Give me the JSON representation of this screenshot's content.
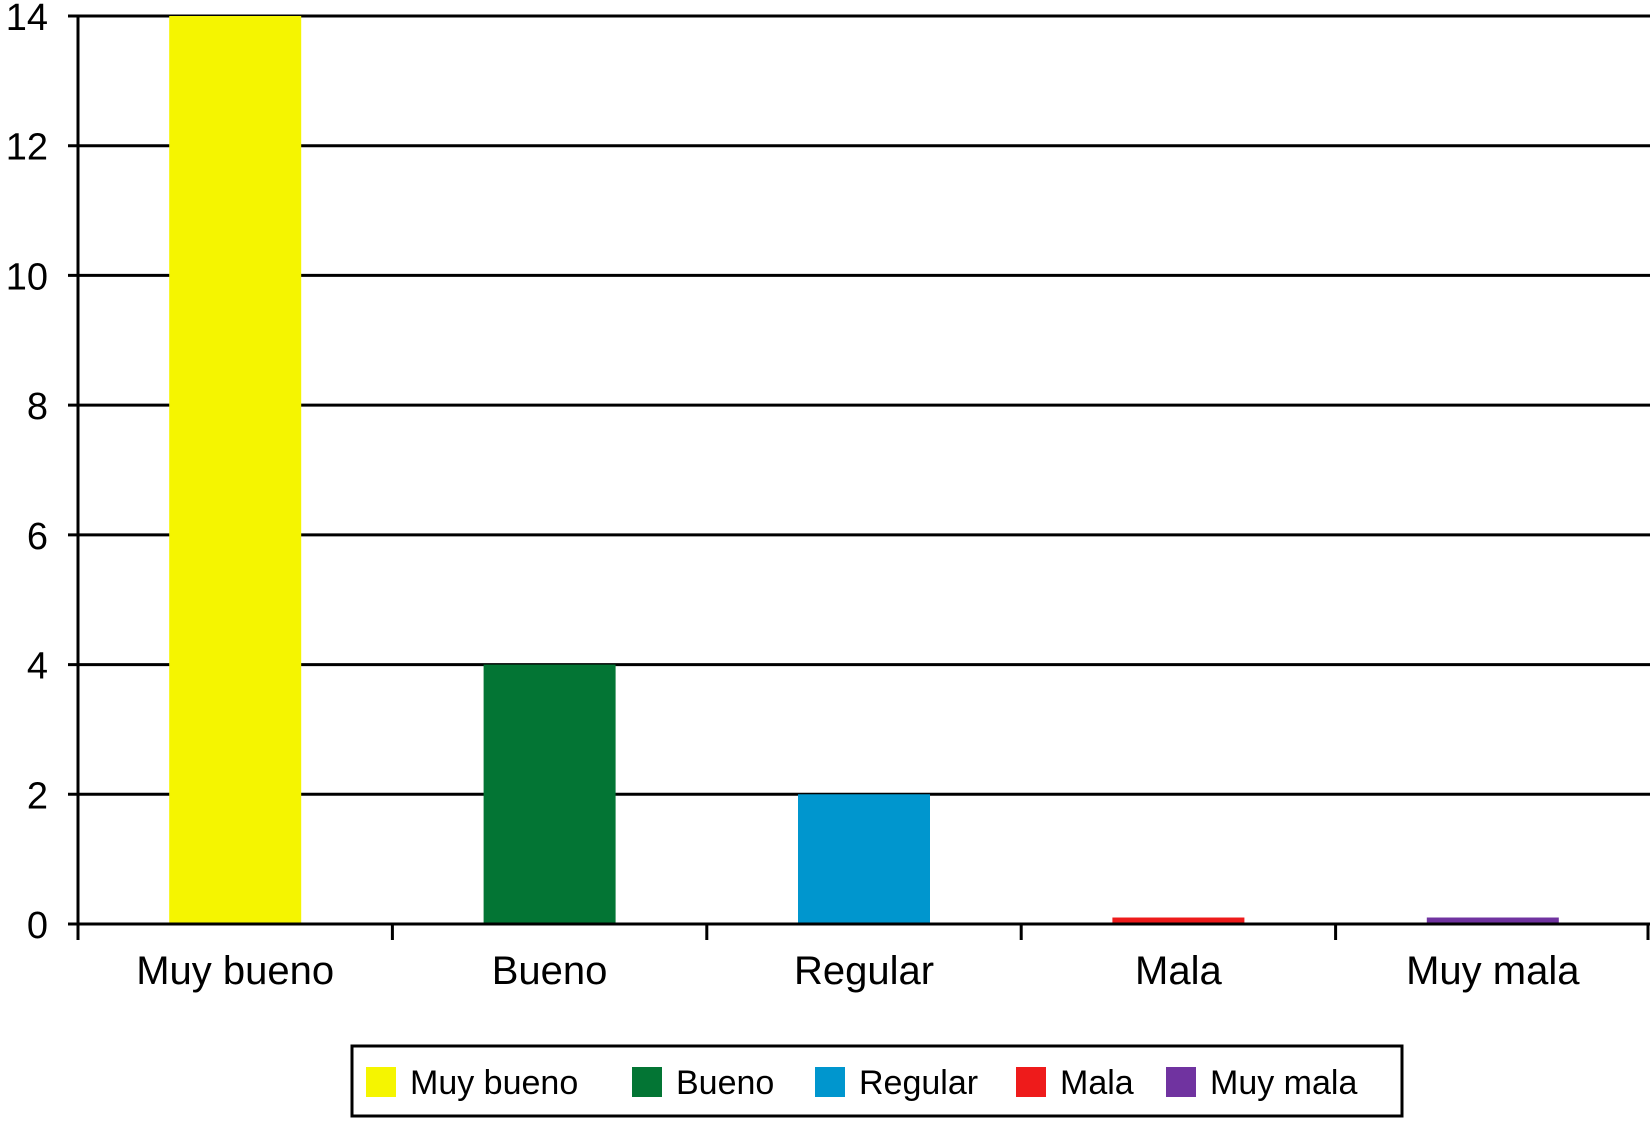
{
  "chart_data": {
    "type": "bar",
    "categories": [
      "Muy bueno",
      "Bueno",
      "Regular",
      "Mala",
      "Muy mala"
    ],
    "values": [
      14,
      4,
      2,
      0.1,
      0.1
    ],
    "colors": [
      "#F5F500",
      "#037534",
      "#0096CE",
      "#EE1B1B",
      "#7033A0"
    ],
    "ylim": [
      0,
      14
    ],
    "yticks": [
      0,
      2,
      4,
      6,
      8,
      10,
      12,
      14
    ],
    "grid": true,
    "legend": {
      "position": "bottom",
      "entries": [
        "Muy bueno",
        "Bueno",
        "Regular",
        "Mala",
        "Muy mala"
      ]
    }
  }
}
